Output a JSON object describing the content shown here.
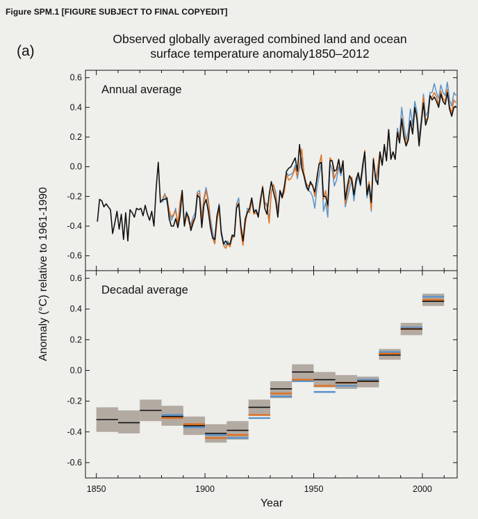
{
  "figure_label": "Figure SPM.1 [FIGURE SUBJECT TO FINAL COPYEDIT]",
  "panel_label": "(a)",
  "title_line1": "Observed globally averaged combined land and ocean",
  "title_line2": "surface temperature anomaly1850–2012",
  "colors": {
    "hadcrut": "#111111",
    "ncdc": "#e07020",
    "giss": "#5a92c8",
    "uncertainty_box": "#b3aaa2",
    "background": "#efefec"
  },
  "chart_data": [
    {
      "type": "line",
      "title": "Annual average",
      "xlabel": "Year",
      "ylabel": "Anomaly (°C) relative to 1961-1990",
      "xlim": [
        1845,
        2016
      ],
      "ylim": [
        -0.7,
        0.65
      ],
      "yticks": [
        0.6,
        0.4,
        0.2,
        0.0,
        -0.2,
        -0.4,
        -0.6
      ],
      "ytick_labels": [
        "0.6",
        "0.4",
        "0.2",
        "0.0",
        "-0.2",
        "-0.4",
        "-0.6"
      ],
      "series": [
        {
          "color_key": "hadcrut",
          "x_start": 1850,
          "values": [
            -0.37,
            -0.22,
            -0.23,
            -0.27,
            -0.25,
            -0.27,
            -0.29,
            -0.45,
            -0.38,
            -0.3,
            -0.42,
            -0.32,
            -0.49,
            -0.31,
            -0.5,
            -0.29,
            -0.31,
            -0.34,
            -0.28,
            -0.29,
            -0.28,
            -0.33,
            -0.26,
            -0.32,
            -0.36,
            -0.3,
            -0.4,
            -0.15,
            0.03,
            -0.24,
            -0.22,
            -0.22,
            -0.21,
            -0.35,
            -0.4,
            -0.4,
            -0.35,
            -0.41,
            -0.33,
            -0.16,
            -0.4,
            -0.31,
            -0.34,
            -0.43,
            -0.38,
            -0.34,
            -0.19,
            -0.21,
            -0.41,
            -0.26,
            -0.22,
            -0.3,
            -0.41,
            -0.48,
            -0.49,
            -0.33,
            -0.26,
            -0.45,
            -0.52,
            -0.5,
            -0.52,
            -0.52,
            -0.46,
            -0.47,
            -0.28,
            -0.25,
            -0.4,
            -0.5,
            -0.35,
            -0.31,
            -0.28,
            -0.21,
            -0.31,
            -0.29,
            -0.34,
            -0.22,
            -0.14,
            -0.28,
            -0.32,
            -0.19,
            -0.1,
            -0.17,
            -0.23,
            -0.34,
            -0.16,
            -0.21,
            -0.13,
            -0.03,
            -0.01,
            0.0,
            0.03,
            0.06,
            -0.03,
            0.15,
            -0.01,
            -0.06,
            -0.12,
            -0.16,
            -0.1,
            -0.13,
            -0.17,
            -0.08,
            0.02,
            0.03,
            -0.2,
            -0.2,
            -0.26,
            0.04,
            0.04,
            -0.03,
            -0.02,
            0.05,
            -0.04,
            0.04,
            -0.22,
            -0.13,
            -0.06,
            -0.09,
            -0.19,
            -0.09,
            -0.04,
            -0.12,
            0.01,
            0.1,
            -0.19,
            -0.12,
            -0.24,
            0.05,
            -0.08,
            -0.12,
            0.1,
            0.01,
            0.15,
            0.04,
            0.25,
            0.05,
            0.1,
            0.05,
            0.23,
            0.16,
            0.32,
            0.2,
            0.14,
            0.18,
            0.31,
            0.22,
            0.4,
            0.32,
            0.14,
            0.29,
            0.43,
            0.28,
            0.33,
            0.48,
            0.45,
            0.47,
            0.44,
            0.4,
            0.49,
            0.44,
            0.42,
            0.5,
            0.39,
            0.34,
            0.4,
            0.41
          ]
        },
        {
          "color_key": "ncdc",
          "x_start": 1880,
          "values": [
            -0.21,
            -0.19,
            -0.21,
            -0.29,
            -0.34,
            -0.32,
            -0.3,
            -0.38,
            -0.24,
            -0.16,
            -0.4,
            -0.32,
            -0.37,
            -0.41,
            -0.36,
            -0.34,
            -0.18,
            -0.18,
            -0.36,
            -0.23,
            -0.16,
            -0.24,
            -0.38,
            -0.48,
            -0.52,
            -0.37,
            -0.28,
            -0.44,
            -0.53,
            -0.55,
            -0.52,
            -0.54,
            -0.48,
            -0.47,
            -0.27,
            -0.24,
            -0.44,
            -0.53,
            -0.39,
            -0.3,
            -0.31,
            -0.23,
            -0.32,
            -0.31,
            -0.33,
            -0.25,
            -0.13,
            -0.24,
            -0.27,
            -0.38,
            -0.17,
            -0.12,
            -0.19,
            -0.32,
            -0.17,
            -0.21,
            -0.17,
            -0.05,
            -0.09,
            -0.08,
            -0.05,
            -0.01,
            -0.06,
            0.01,
            0.12,
            -0.04,
            -0.11,
            -0.13,
            -0.12,
            -0.12,
            -0.2,
            -0.06,
            0.01,
            0.08,
            -0.22,
            -0.16,
            -0.28,
            0.06,
            0.04,
            -0.08,
            -0.04,
            0.04,
            -0.04,
            0.03,
            -0.25,
            -0.17,
            -0.1,
            -0.07,
            -0.18,
            -0.08,
            -0.05,
            -0.09,
            -0.01,
            0.11,
            -0.18,
            -0.1,
            -0.29,
            0.06,
            -0.09,
            0.0,
            0.1,
            0.02,
            0.14,
            0.05,
            0.25,
            0.05,
            0.1,
            0.05,
            0.24,
            0.18,
            0.33,
            0.23,
            0.15,
            0.2,
            0.31,
            0.23,
            0.4,
            0.34,
            0.15,
            0.3,
            0.47,
            0.31,
            0.33,
            0.47,
            0.47,
            0.5,
            0.47,
            0.42,
            0.51,
            0.46,
            0.44,
            0.52,
            0.41,
            0.36,
            0.45,
            0.43
          ]
        },
        {
          "color_key": "giss",
          "x_start": 1880,
          "values": [
            -0.24,
            -0.18,
            -0.24,
            -0.32,
            -0.36,
            -0.33,
            -0.28,
            -0.39,
            -0.27,
            -0.18,
            -0.38,
            -0.3,
            -0.36,
            -0.39,
            -0.34,
            -0.31,
            -0.17,
            -0.16,
            -0.34,
            -0.21,
            -0.14,
            -0.22,
            -0.35,
            -0.44,
            -0.51,
            -0.35,
            -0.25,
            -0.43,
            -0.51,
            -0.53,
            -0.5,
            -0.53,
            -0.47,
            -0.46,
            -0.25,
            -0.21,
            -0.42,
            -0.52,
            -0.37,
            -0.28,
            -0.29,
            -0.21,
            -0.3,
            -0.29,
            -0.32,
            -0.25,
            -0.13,
            -0.24,
            -0.25,
            -0.36,
            -0.17,
            -0.12,
            -0.17,
            -0.3,
            -0.16,
            -0.19,
            -0.15,
            -0.04,
            -0.06,
            -0.05,
            -0.04,
            0.01,
            -0.08,
            0.0,
            0.06,
            -0.06,
            -0.14,
            -0.16,
            -0.17,
            -0.2,
            -0.28,
            -0.14,
            -0.06,
            0.03,
            -0.3,
            -0.24,
            -0.34,
            0.02,
            -0.02,
            -0.13,
            -0.09,
            0.0,
            -0.06,
            0.01,
            -0.27,
            -0.21,
            -0.15,
            -0.09,
            -0.23,
            -0.12,
            -0.06,
            -0.13,
            -0.03,
            0.08,
            -0.21,
            -0.14,
            -0.3,
            0.05,
            -0.1,
            -0.04,
            0.08,
            0.01,
            0.13,
            0.04,
            0.24,
            0.05,
            0.1,
            0.05,
            0.26,
            0.2,
            0.4,
            0.28,
            0.18,
            0.24,
            0.39,
            0.28,
            0.44,
            0.37,
            0.19,
            0.33,
            0.49,
            0.34,
            0.37,
            0.5,
            0.5,
            0.56,
            0.5,
            0.46,
            0.55,
            0.5,
            0.48,
            0.57,
            0.45,
            0.41,
            0.5,
            0.48
          ]
        }
      ]
    },
    {
      "type": "bar",
      "title": "Decadal average",
      "xlabel": "Year",
      "xlim": [
        1845,
        2016
      ],
      "ylim": [
        -0.7,
        0.65
      ],
      "xticks": [
        1850,
        1900,
        1950,
        2000
      ],
      "xtick_labels": [
        "1850",
        "1900",
        "1950",
        "2000"
      ],
      "yticks": [
        0.6,
        0.4,
        0.2,
        0.0,
        -0.2,
        -0.4,
        -0.6
      ],
      "ytick_labels": [
        "0.6",
        "0.4",
        "0.2",
        "0.0",
        "-0.2",
        "-0.4",
        "-0.6"
      ],
      "decades": [
        {
          "start": 1850,
          "end": 1860,
          "hadcrut": -0.32,
          "box_low": -0.4,
          "box_high": -0.24
        },
        {
          "start": 1860,
          "end": 1870,
          "hadcrut": -0.34,
          "box_low": -0.41,
          "box_high": -0.26
        },
        {
          "start": 1870,
          "end": 1880,
          "hadcrut": -0.26,
          "box_low": -0.33,
          "box_high": -0.19
        },
        {
          "start": 1880,
          "end": 1890,
          "hadcrut": -0.3,
          "ncdc": -0.31,
          "giss": -0.29,
          "box_low": -0.36,
          "box_high": -0.23
        },
        {
          "start": 1890,
          "end": 1900,
          "hadcrut": -0.36,
          "ncdc": -0.35,
          "giss": -0.37,
          "box_low": -0.42,
          "box_high": -0.3
        },
        {
          "start": 1900,
          "end": 1910,
          "hadcrut": -0.41,
          "ncdc": -0.44,
          "giss": -0.42,
          "box_low": -0.47,
          "box_high": -0.35
        },
        {
          "start": 1910,
          "end": 1920,
          "hadcrut": -0.39,
          "ncdc": -0.42,
          "giss": -0.44,
          "box_low": -0.45,
          "box_high": -0.33
        },
        {
          "start": 1920,
          "end": 1930,
          "hadcrut": -0.24,
          "ncdc": -0.29,
          "giss": -0.31,
          "box_low": -0.29,
          "box_high": -0.19
        },
        {
          "start": 1930,
          "end": 1940,
          "hadcrut": -0.12,
          "ncdc": -0.15,
          "giss": -0.17,
          "box_low": -0.18,
          "box_high": -0.07
        },
        {
          "start": 1940,
          "end": 1950,
          "hadcrut": -0.01,
          "ncdc": -0.06,
          "giss": -0.07,
          "box_low": -0.07,
          "box_high": 0.04
        },
        {
          "start": 1950,
          "end": 1960,
          "hadcrut": -0.06,
          "ncdc": -0.1,
          "giss": -0.14,
          "box_low": -0.11,
          "box_high": -0.01
        },
        {
          "start": 1960,
          "end": 1970,
          "hadcrut": -0.08,
          "ncdc": -0.08,
          "giss": -0.1,
          "box_low": -0.12,
          "box_high": -0.03
        },
        {
          "start": 1970,
          "end": 1980,
          "hadcrut": -0.07,
          "ncdc": -0.07,
          "giss": -0.06,
          "box_low": -0.11,
          "box_high": -0.04
        },
        {
          "start": 1980,
          "end": 1990,
          "hadcrut": 0.1,
          "ncdc": 0.11,
          "giss": 0.12,
          "box_low": 0.07,
          "box_high": 0.14
        },
        {
          "start": 1990,
          "end": 2000,
          "hadcrut": 0.27,
          "ncdc": 0.27,
          "giss": 0.28,
          "box_low": 0.23,
          "box_high": 0.31
        },
        {
          "start": 2000,
          "end": 2010,
          "hadcrut": 0.45,
          "ncdc": 0.46,
          "giss": 0.48,
          "box_low": 0.42,
          "box_high": 0.5
        }
      ]
    }
  ]
}
